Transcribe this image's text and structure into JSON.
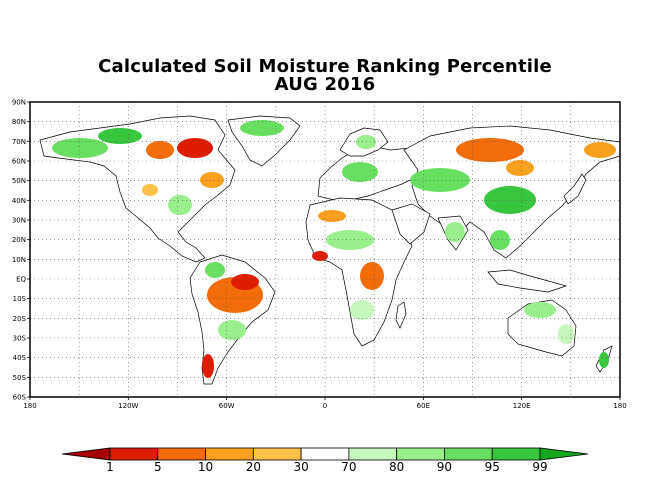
{
  "title": {
    "line1": "Calculated Soil Moisture Ranking Percentile",
    "line2": "AUG 2016"
  },
  "axes": {
    "lat_labels": [
      "90N",
      "80N",
      "70N",
      "60N",
      "50N",
      "40N",
      "30N",
      "20N",
      "10N",
      "EQ",
      "10S",
      "20S",
      "30S",
      "40S",
      "50S",
      "60S"
    ],
    "lon_labels": [
      "180",
      "120W",
      "60W",
      "0",
      "60E",
      "120E",
      "180"
    ]
  },
  "legend": {
    "labels": [
      "1",
      "5",
      "10",
      "20",
      "30",
      "70",
      "80",
      "90",
      "95",
      "99"
    ],
    "colors": [
      "#a50000",
      "#dd1c00",
      "#f26c0a",
      "#fb9f1e",
      "#ffc04a",
      "#ffffff",
      "#c6f7bc",
      "#99ef8c",
      "#69df62",
      "#39c63f",
      "#14a61c"
    ]
  }
}
